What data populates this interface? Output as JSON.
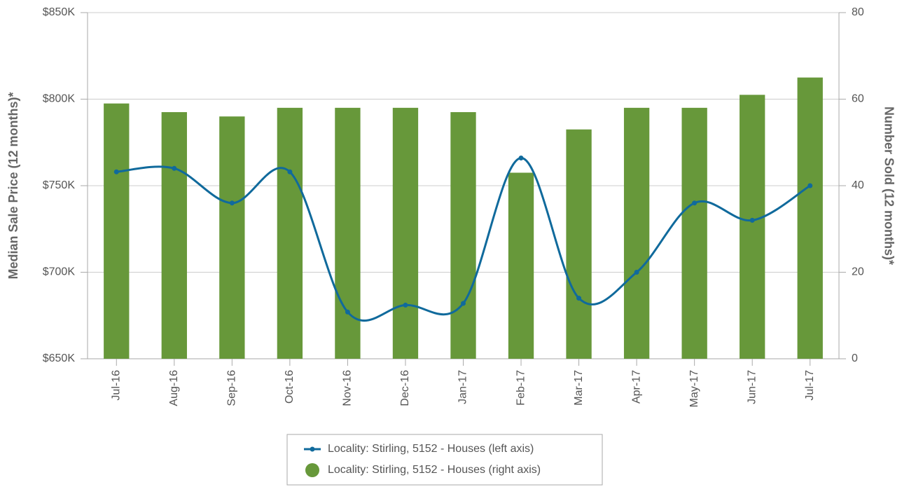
{
  "chart_data": {
    "type": "combo",
    "y_label": "Median Sale Price (12 months)*",
    "y2_label": "Number Sold (12 months)*",
    "categories": [
      "Jul-16",
      "Aug-16",
      "Sep-16",
      "Oct-16",
      "Nov-16",
      "Dec-16",
      "Jan-17",
      "Feb-17",
      "Mar-17",
      "Apr-17",
      "May-17",
      "Jun-17",
      "Jul-17"
    ],
    "series": [
      {
        "name": "Locality: Stirling, 5152 - Houses (right axis)",
        "type": "bar",
        "axis": "y2",
        "color": "#67983a",
        "values": [
          59,
          57,
          56,
          58,
          58,
          58,
          57,
          43,
          53,
          58,
          58,
          61,
          65
        ]
      },
      {
        "name": "Locality: Stirling, 5152 - Houses (left axis)",
        "type": "line",
        "color": "#106a9c",
        "values": [
          758000,
          760000,
          740000,
          758000,
          677000,
          681000,
          682000,
          766000,
          685000,
          700000,
          740000,
          730000,
          750000
        ]
      }
    ],
    "legend_order": [
      1,
      0
    ],
    "ylim": [
      650000,
      850000
    ],
    "yticks": [
      {
        "value": 650000,
        "label": "$650K"
      },
      {
        "value": 700000,
        "label": "$700K"
      },
      {
        "value": 750000,
        "label": "$750K"
      },
      {
        "value": 800000,
        "label": "$800K"
      },
      {
        "value": 850000,
        "label": "$850K"
      }
    ],
    "y2lim": [
      0,
      80
    ],
    "y2ticks": [
      0,
      20,
      40,
      60,
      80
    ],
    "grid": true
  }
}
